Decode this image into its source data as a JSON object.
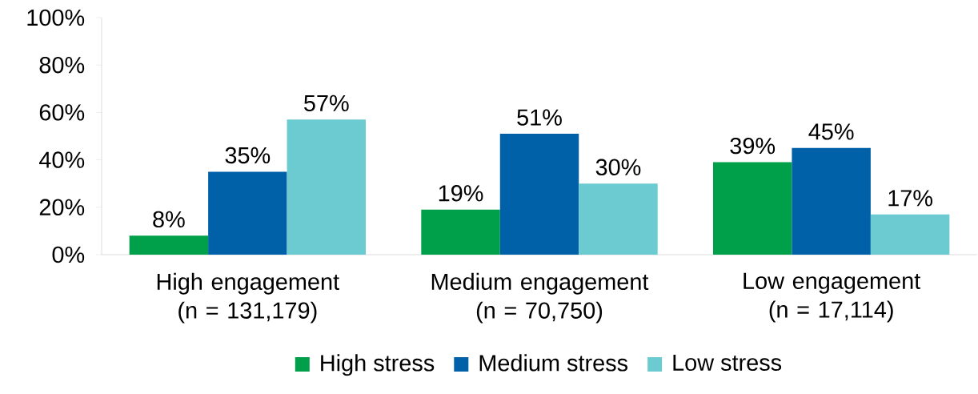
{
  "chart_data": {
    "type": "bar",
    "categories": [
      "High engagement (n = 131,179)",
      "Medium engagement (n = 70,750)",
      "Low engagement (n = 17,114)"
    ],
    "series": [
      {
        "name": "High stress",
        "color": "#00a04a",
        "values": [
          8,
          19,
          39
        ],
        "value_labels": [
          "8%",
          "19%",
          "39%"
        ]
      },
      {
        "name": "Medium stress",
        "color": "#0060a8",
        "values": [
          35,
          51,
          45
        ],
        "value_labels": [
          "35%",
          "51%",
          "45%"
        ]
      },
      {
        "name": "Low stress",
        "color": "#6ccbd0",
        "values": [
          57,
          30,
          17
        ],
        "value_labels": [
          "57%",
          "30%",
          "17%"
        ]
      }
    ],
    "ylim": [
      0,
      100
    ],
    "yticks": [
      {
        "value": 0,
        "label": "0%"
      },
      {
        "value": 20,
        "label": "20%"
      },
      {
        "value": 40,
        "label": "40%"
      },
      {
        "value": 60,
        "label": "60%"
      },
      {
        "value": 80,
        "label": "80%"
      },
      {
        "value": 100,
        "label": "100%"
      }
    ],
    "legend": "bottom",
    "grid": false
  }
}
